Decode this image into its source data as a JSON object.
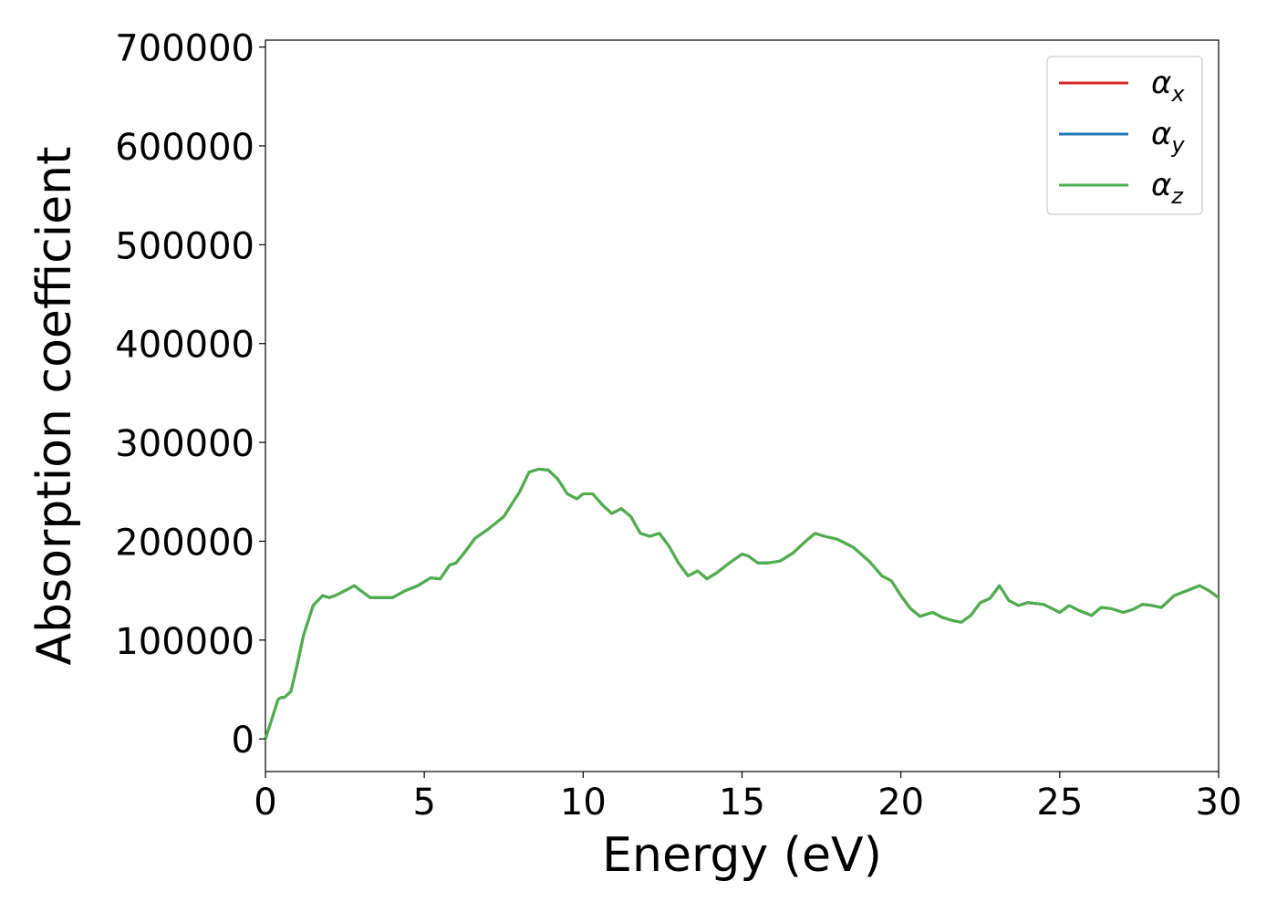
{
  "chart_data": {
    "type": "line",
    "xlabel": "Energy (eV)",
    "ylabel": "Absorption coefficient",
    "xlim": [
      0,
      30
    ],
    "ylim": [
      -33000,
      707000
    ],
    "xticks": [
      0,
      5,
      10,
      15,
      20,
      25,
      30
    ],
    "xtick_labels": [
      "0",
      "5",
      "10",
      "15",
      "20",
      "25",
      "30"
    ],
    "yticks": [
      0,
      100000,
      200000,
      300000,
      400000,
      500000,
      600000,
      700000
    ],
    "ytick_labels": [
      "0",
      "100000",
      "200000",
      "300000",
      "400000",
      "500000",
      "600000",
      "700000"
    ],
    "grid": false,
    "legend_position": "top-right",
    "x": [
      0,
      0.2,
      0.4,
      0.5,
      0.6,
      0.8,
      1.0,
      1.2,
      1.5,
      1.8,
      2.0,
      2.2,
      2.5,
      2.8,
      3.0,
      3.3,
      3.6,
      4.0,
      4.4,
      4.8,
      5.2,
      5.5,
      5.8,
      6.0,
      6.3,
      6.6,
      7.0,
      7.5,
      8.0,
      8.3,
      8.6,
      8.9,
      9.2,
      9.5,
      9.8,
      10.0,
      10.3,
      10.6,
      10.9,
      11.2,
      11.5,
      11.8,
      12.1,
      12.4,
      12.7,
      13.0,
      13.3,
      13.6,
      13.9,
      14.2,
      14.6,
      15.0,
      15.2,
      15.5,
      15.8,
      16.2,
      16.6,
      17.0,
      17.3,
      17.6,
      18.0,
      18.5,
      19.0,
      19.4,
      19.7,
      20.0,
      20.3,
      20.6,
      21.0,
      21.3,
      21.6,
      21.9,
      22.2,
      22.5,
      22.8,
      23.1,
      23.4,
      23.7,
      24.0,
      24.5,
      25.0,
      25.3,
      25.6,
      26.0,
      26.3,
      26.6,
      27.0,
      27.3,
      27.6,
      27.9,
      28.2,
      28.6,
      29.0,
      29.4,
      29.7,
      30.0
    ],
    "series": [
      {
        "name": "αx",
        "color": "#d62728",
        "values": [
          0,
          20000,
          40000,
          42000,
          42000,
          48000,
          75000,
          105000,
          135000,
          145000,
          143000,
          145000,
          150000,
          155000,
          150000,
          143000,
          143000,
          143000,
          150000,
          155000,
          163000,
          162000,
          176000,
          178000,
          190000,
          203000,
          212000,
          225000,
          250000,
          270000,
          273000,
          272000,
          263000,
          248000,
          243000,
          248000,
          248000,
          237000,
          228000,
          233000,
          225000,
          208000,
          205000,
          208000,
          195000,
          178000,
          165000,
          170000,
          162000,
          168000,
          178000,
          187000,
          185000,
          178000,
          178000,
          180000,
          188000,
          200000,
          208000,
          205000,
          202000,
          194000,
          180000,
          165000,
          160000,
          145000,
          132000,
          124000,
          128000,
          123000,
          120000,
          118000,
          125000,
          138000,
          142000,
          155000,
          140000,
          135000,
          138000,
          136000,
          128000,
          135000,
          130000,
          125000,
          133000,
          132000,
          128000,
          131000,
          136000,
          135000,
          133000,
          145000,
          150000,
          155000,
          150000,
          143000
        ]
      },
      {
        "name": "αy",
        "color": "#1f77b4",
        "values": [
          0,
          20000,
          40000,
          42000,
          42000,
          48000,
          75000,
          105000,
          135000,
          145000,
          143000,
          145000,
          150000,
          155000,
          150000,
          143000,
          143000,
          143000,
          150000,
          155000,
          163000,
          162000,
          176000,
          178000,
          190000,
          203000,
          212000,
          225000,
          250000,
          270000,
          273000,
          272000,
          263000,
          248000,
          243000,
          248000,
          248000,
          237000,
          228000,
          233000,
          225000,
          208000,
          205000,
          208000,
          195000,
          178000,
          165000,
          170000,
          162000,
          168000,
          178000,
          187000,
          185000,
          178000,
          178000,
          180000,
          188000,
          200000,
          208000,
          205000,
          202000,
          194000,
          180000,
          165000,
          160000,
          145000,
          132000,
          124000,
          128000,
          123000,
          120000,
          118000,
          125000,
          138000,
          142000,
          155000,
          140000,
          135000,
          138000,
          136000,
          128000,
          135000,
          130000,
          125000,
          133000,
          132000,
          128000,
          131000,
          136000,
          135000,
          133000,
          145000,
          150000,
          155000,
          150000,
          143000
        ]
      },
      {
        "name": "αz",
        "color": "#4daf4a",
        "values": [
          0,
          20000,
          40000,
          42000,
          42000,
          48000,
          75000,
          105000,
          135000,
          145000,
          143000,
          145000,
          150000,
          155000,
          150000,
          143000,
          143000,
          143000,
          150000,
          155000,
          163000,
          162000,
          176000,
          178000,
          190000,
          203000,
          212000,
          225000,
          250000,
          270000,
          273000,
          272000,
          263000,
          248000,
          243000,
          248000,
          248000,
          237000,
          228000,
          233000,
          225000,
          208000,
          205000,
          208000,
          195000,
          178000,
          165000,
          170000,
          162000,
          168000,
          178000,
          187000,
          185000,
          178000,
          178000,
          180000,
          188000,
          200000,
          208000,
          205000,
          202000,
          194000,
          180000,
          165000,
          160000,
          145000,
          132000,
          124000,
          128000,
          123000,
          120000,
          118000,
          125000,
          138000,
          142000,
          155000,
          140000,
          135000,
          138000,
          136000,
          128000,
          135000,
          130000,
          125000,
          133000,
          132000,
          128000,
          131000,
          136000,
          135000,
          133000,
          145000,
          150000,
          155000,
          150000,
          143000
        ]
      }
    ],
    "legend": [
      {
        "symbol": "α",
        "sub": "x",
        "color": "#d62728"
      },
      {
        "symbol": "α",
        "sub": "y",
        "color": "#1f77b4"
      },
      {
        "symbol": "α",
        "sub": "z",
        "color": "#4daf4a"
      }
    ]
  }
}
